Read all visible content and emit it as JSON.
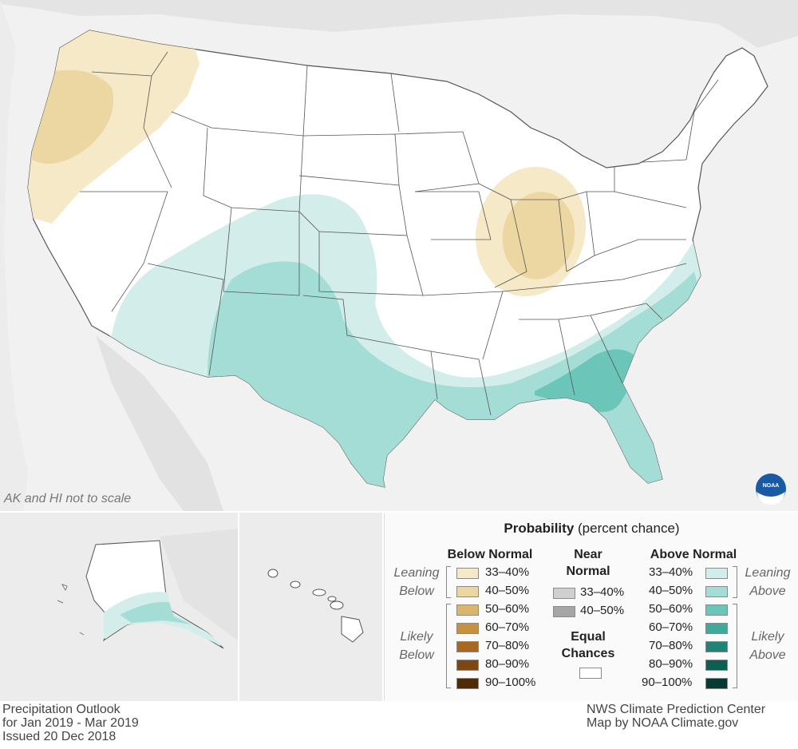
{
  "map": {
    "scale_note": "AK and HI not to scale"
  },
  "legend": {
    "title_bold": "Probability",
    "title_rest": " (percent chance)",
    "below_head": "Below Normal",
    "near_head_1": "Near",
    "near_head_2": "Normal",
    "above_head": "Above Normal",
    "leaning_below_1": "Leaning",
    "leaning_below_2": "Below",
    "likely_below_1": "Likely",
    "likely_below_2": "Below",
    "leaning_above_1": "Leaning",
    "leaning_above_2": "Above",
    "likely_above_1": "Likely",
    "likely_above_2": "Above",
    "equal_1": "Equal",
    "equal_2": "Chances",
    "below": [
      {
        "label": "33–40%",
        "color": "#f6e9c8"
      },
      {
        "label": "40–50%",
        "color": "#ecd7a3"
      },
      {
        "label": "50–60%",
        "color": "#dbb56a"
      },
      {
        "label": "60–70%",
        "color": "#c8913d"
      },
      {
        "label": "70–80%",
        "color": "#a8681f"
      },
      {
        "label": "80–90%",
        "color": "#7c4712"
      },
      {
        "label": "90–100%",
        "color": "#4f2b08"
      }
    ],
    "near": [
      {
        "label": "33–40%",
        "color": "#d0d0d0"
      },
      {
        "label": "40–50%",
        "color": "#a6a6a6"
      }
    ],
    "above": [
      {
        "label": "33–40%",
        "color": "#d3eeea"
      },
      {
        "label": "40–50%",
        "color": "#a3ddd5"
      },
      {
        "label": "50–60%",
        "color": "#6cc5b9"
      },
      {
        "label": "60–70%",
        "color": "#3fa99c"
      },
      {
        "label": "70–80%",
        "color": "#1f8376"
      },
      {
        "label": "80–90%",
        "color": "#0d5f52"
      },
      {
        "label": "90–100%",
        "color": "#063b33"
      }
    ],
    "equal_color": "#ffffff"
  },
  "footer": {
    "left_1": "Precipitation Outlook",
    "left_2": "for Jan 2019 - Mar 2019",
    "left_3": "Issued 20 Dec 2018",
    "right_1": "NWS Climate Prediction Center",
    "right_2": "Map by NOAA Climate.gov"
  },
  "logo": {
    "text": "NOAA",
    "color": "#1a5aa5"
  }
}
